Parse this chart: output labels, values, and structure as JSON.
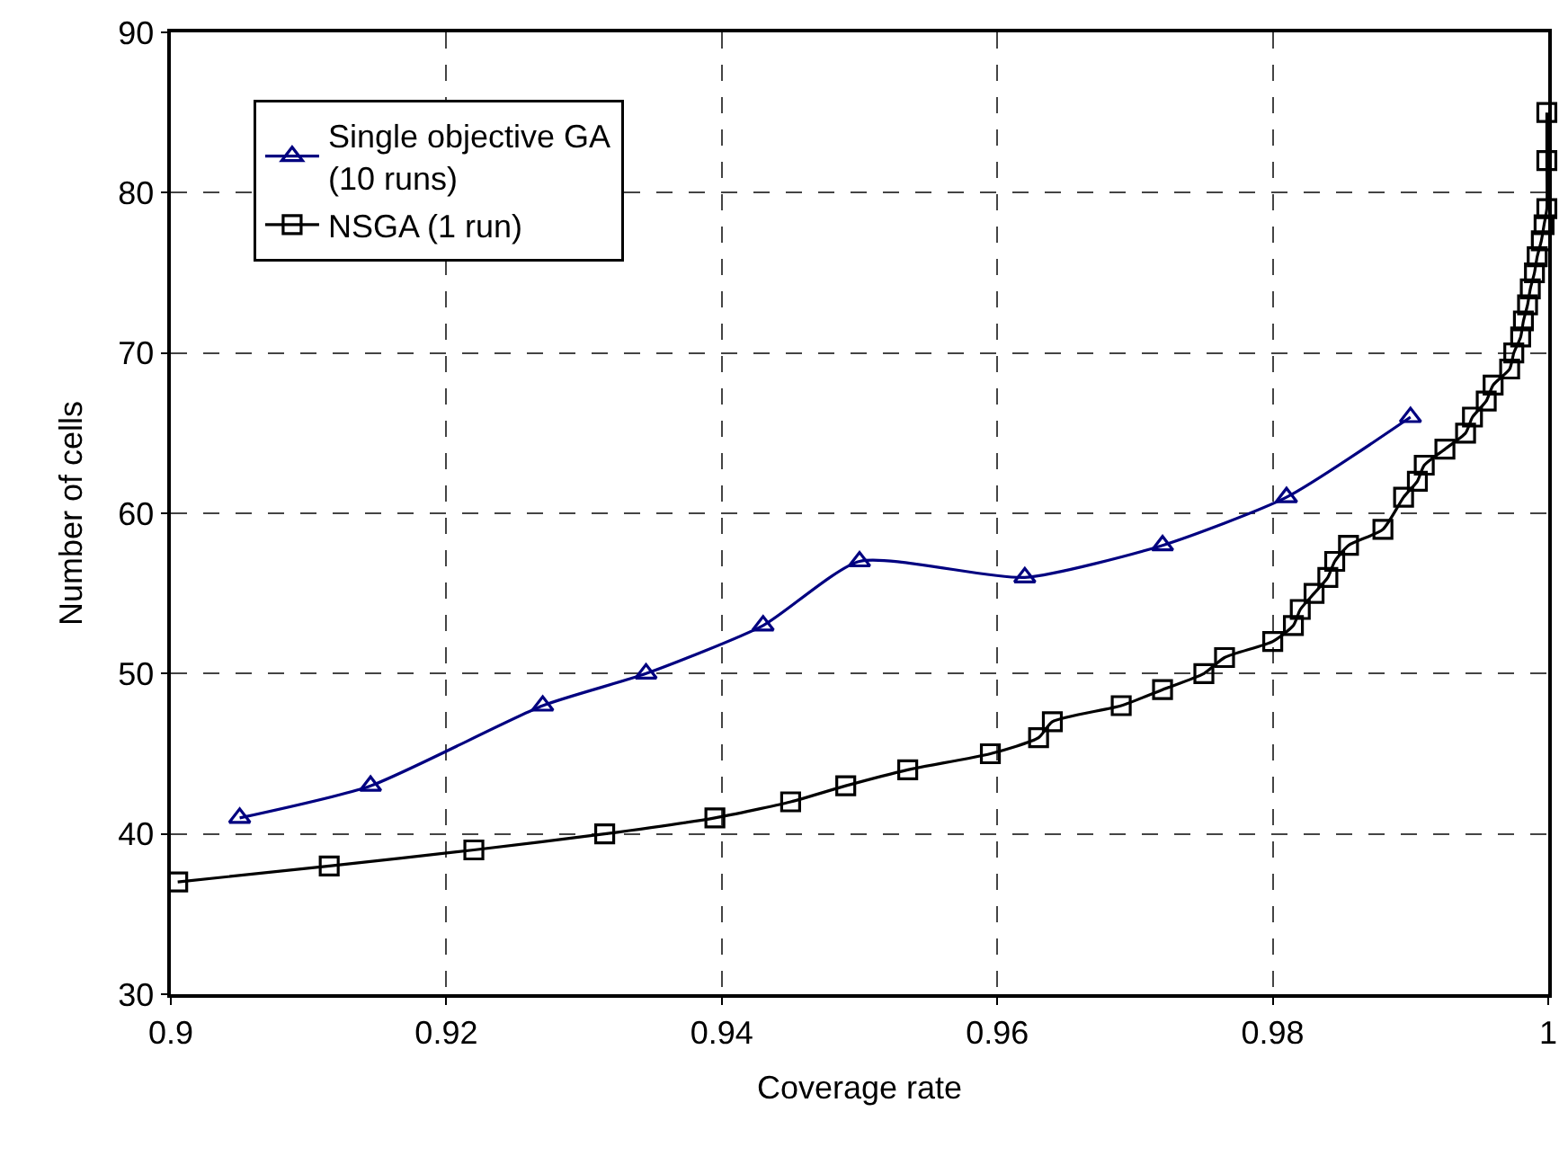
{
  "chart_data": {
    "type": "line",
    "xlabel": "Coverage rate",
    "ylabel": "Number of cells",
    "xlim": [
      0.9,
      1.0
    ],
    "xticks": [
      0.9,
      0.92,
      0.94,
      0.96,
      0.98,
      1
    ],
    "ylim": [
      30,
      90
    ],
    "yticks": [
      30,
      40,
      50,
      60,
      70,
      80,
      90
    ],
    "grid": true,
    "legend": "top left",
    "series": [
      {
        "name": "Single objective GA (10 runs)",
        "color": "#000080",
        "marker": "triangle",
        "x": [
          0.905,
          0.9145,
          0.927,
          0.9345,
          0.943,
          0.95,
          0.962,
          0.972,
          0.981,
          0.99
        ],
        "values": [
          41,
          43,
          48,
          50,
          53,
          57,
          56,
          58,
          61,
          66
        ]
      },
      {
        "name": "NSGA (1 run)",
        "color": "#000000",
        "marker": "square",
        "x": [
          0.9005,
          0.9115,
          0.922,
          0.9315,
          0.9395,
          0.945,
          0.949,
          0.9535,
          0.9595,
          0.963,
          0.964,
          0.969,
          0.972,
          0.975,
          0.9765,
          0.98,
          0.9815,
          0.982,
          0.983,
          0.984,
          0.9845,
          0.9855,
          0.988,
          0.9895,
          0.9905,
          0.991,
          0.9925,
          0.994,
          0.9945,
          0.9955,
          0.996,
          0.9972,
          0.9975,
          0.998,
          0.9982,
          0.9985,
          0.9987,
          0.999,
          0.9992,
          0.9995,
          0.9997,
          0.9999,
          0.9999,
          0.9999
        ],
        "values": [
          37,
          38,
          39,
          40,
          41,
          42,
          43,
          44,
          45,
          46,
          47,
          48,
          49,
          50,
          51,
          52,
          53,
          54,
          55,
          56,
          57,
          58,
          59,
          61,
          62,
          63,
          64,
          65,
          66,
          67,
          68,
          69,
          70,
          71,
          72,
          73,
          74,
          75,
          76,
          77,
          78,
          79,
          82,
          85
        ]
      }
    ]
  }
}
